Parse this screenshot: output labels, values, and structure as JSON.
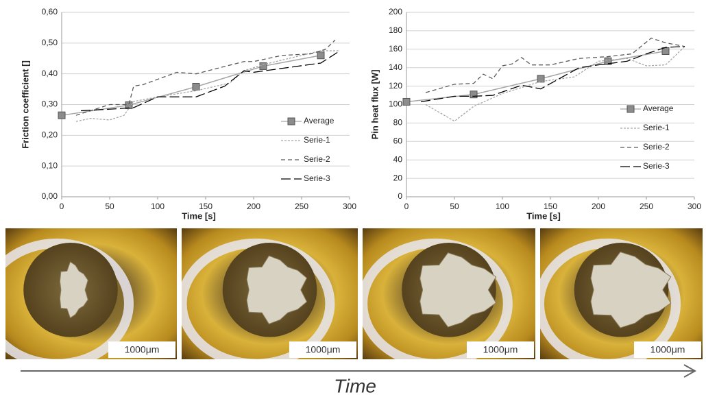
{
  "chart_data": [
    {
      "type": "line",
      "y_label": "Friction coefficient []",
      "x_label": "Time [s]",
      "xlim": [
        0,
        300
      ],
      "xticks": [
        0,
        50,
        100,
        150,
        200,
        250,
        300
      ],
      "ylim": [
        0,
        0.6
      ],
      "yticks": [
        {
          "value": 0,
          "label": "0,00"
        },
        {
          "value": 0.1,
          "label": "0,10"
        },
        {
          "value": 0.2,
          "label": "0,20"
        },
        {
          "value": 0.3,
          "label": "0,30"
        },
        {
          "value": 0.4,
          "label": "0,40"
        },
        {
          "value": 0.5,
          "label": "0,50"
        },
        {
          "value": 0.6,
          "label": "0,60"
        }
      ],
      "grid": true,
      "legend": "lower right",
      "series": [
        {
          "name": "Average",
          "color": "#a6a6a6",
          "x": [
            0,
            70,
            140,
            210,
            270
          ],
          "values": [
            0.265,
            0.298,
            0.358,
            0.425,
            0.46
          ]
        },
        {
          "name": "Serie-1",
          "color": "#a6a6a6",
          "x": [
            15,
            30,
            50,
            65,
            75,
            100,
            140,
            175,
            190,
            210,
            250,
            270,
            290
          ],
          "values": [
            0.245,
            0.255,
            0.25,
            0.265,
            0.31,
            0.325,
            0.345,
            0.37,
            0.41,
            0.43,
            0.46,
            0.475,
            0.475
          ]
        },
        {
          "name": "Serie-2",
          "color": "#595959",
          "x": [
            15,
            50,
            70,
            75,
            85,
            120,
            140,
            190,
            200,
            230,
            260,
            275,
            285
          ],
          "values": [
            0.265,
            0.3,
            0.3,
            0.36,
            0.365,
            0.405,
            0.4,
            0.44,
            0.44,
            0.46,
            0.465,
            0.48,
            0.51
          ]
        },
        {
          "name": "Serie-3",
          "color": "#000000",
          "x": [
            20,
            50,
            75,
            100,
            140,
            170,
            190,
            200,
            270,
            290
          ],
          "values": [
            0.28,
            0.285,
            0.29,
            0.325,
            0.325,
            0.36,
            0.41,
            0.405,
            0.435,
            0.475
          ]
        }
      ]
    },
    {
      "type": "line",
      "y_label": "Pin heat flux [W]",
      "x_label": "Time [s]",
      "xlim": [
        0,
        300
      ],
      "xticks": [
        0,
        50,
        100,
        150,
        200,
        250,
        300
      ],
      "ylim": [
        0,
        200
      ],
      "yticks": [
        0,
        20,
        40,
        60,
        80,
        100,
        120,
        140,
        160,
        180,
        200
      ],
      "grid": true,
      "legend": "lower right",
      "series": [
        {
          "name": "Average",
          "color": "#a6a6a6",
          "x": [
            0,
            70,
            140,
            210,
            270
          ],
          "values": [
            103,
            111,
            128,
            147,
            158
          ]
        },
        {
          "name": "Serie-1",
          "color": "#a6a6a6",
          "x": [
            20,
            50,
            70,
            100,
            140,
            175,
            200,
            230,
            250,
            270,
            290
          ],
          "values": [
            100,
            82,
            98,
            112,
            125,
            130,
            147,
            150,
            142,
            143,
            163
          ]
        },
        {
          "name": "Serie-2",
          "color": "#595959",
          "x": [
            20,
            50,
            70,
            80,
            90,
            100,
            110,
            120,
            130,
            150,
            180,
            210,
            235,
            255,
            270,
            290
          ],
          "values": [
            113,
            122,
            123,
            133,
            128,
            142,
            144,
            151,
            143,
            143,
            150,
            152,
            155,
            172,
            167,
            163
          ]
        },
        {
          "name": "Serie-3",
          "color": "#000000",
          "x": [
            15,
            50,
            70,
            90,
            120,
            140,
            180,
            200,
            230,
            250,
            270,
            290
          ],
          "values": [
            103,
            109,
            109,
            110,
            121,
            117,
            140,
            143,
            147,
            155,
            162,
            163
          ]
        }
      ]
    }
  ],
  "images": [
    {
      "scale_label": "1000μm"
    },
    {
      "scale_label": "1000μm"
    },
    {
      "scale_label": "1000μm"
    },
    {
      "scale_label": "1000μm"
    }
  ],
  "timeline_label": "Time"
}
